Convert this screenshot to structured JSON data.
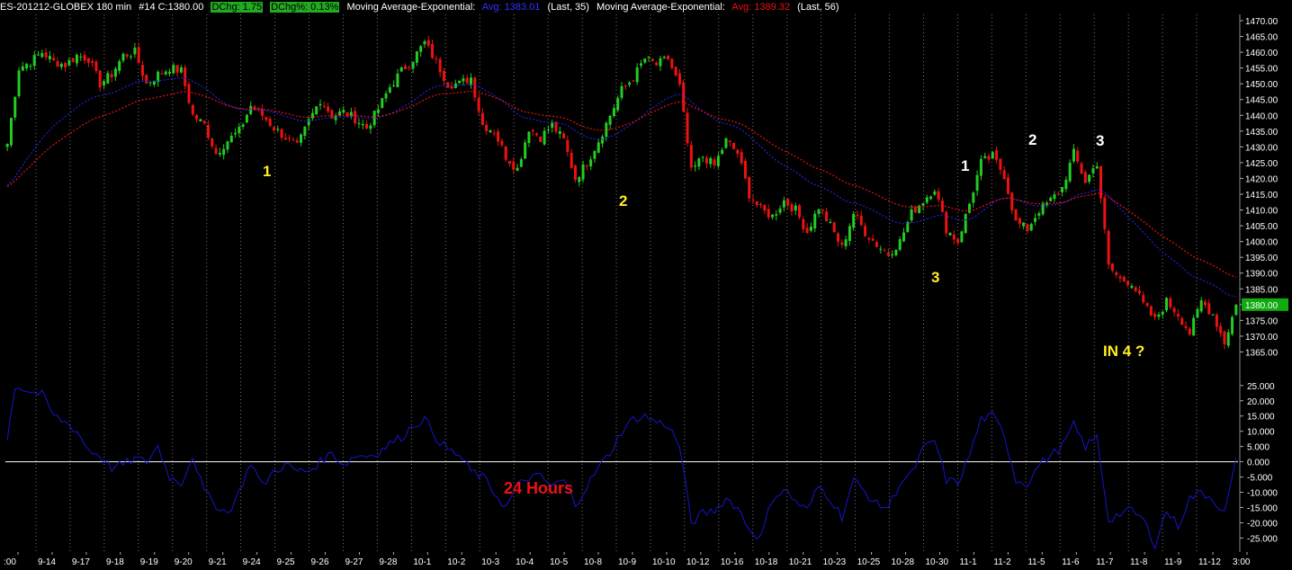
{
  "header": {
    "symbol": "ES-201212-GLOBEX 180 min",
    "bar_info": "#14 C:1380.00",
    "dchg": "DChg: 1.75",
    "dchg_pct": "DChg%: 0.13%",
    "ma1_label": "Moving Average-Exponential:",
    "ma1_avg": "Avg: 1383.01",
    "ma1_params": "(Last, 35)",
    "ma2_label": "Moving Average-Exponential:",
    "ma2_avg": "Avg: 1389.32",
    "ma2_params": "(Last, 56)"
  },
  "colors": {
    "bull": "#22cc22",
    "bear": "#ee1111",
    "ma_fast": "#2222dd",
    "ma_slow": "#ee1111",
    "oscillator": "#1515cc",
    "yellow_annotation": "#ffee22"
  },
  "chart_data": [
    {
      "type": "candlestick",
      "ylim": [
        1362,
        1472
      ],
      "y_ticks": [
        "1470.00",
        "1465.00",
        "1460.00",
        "1455.00",
        "1450.00",
        "1445.00",
        "1440.00",
        "1435.00",
        "1430.00",
        "1425.00",
        "1420.00",
        "1415.00",
        "1410.00",
        "1405.00",
        "1400.00",
        "1395.00",
        "1390.00",
        "1385.00",
        "1380.00",
        "1375.00",
        "1370.00",
        "1365.00"
      ],
      "current_price": "1380.00",
      "x_labels": [
        ":00",
        "9-14",
        "9-17",
        "9-18",
        "9-19",
        "9-20",
        "9-21",
        "9-24",
        "9-25",
        "9-26",
        "9-27",
        "9-28",
        "10-1",
        "10-2",
        "10-3",
        "10-4",
        "10-5",
        "10-8",
        "10-9",
        "10-10",
        "10-12",
        "10-16",
        "10-18",
        "10-21",
        "10-23",
        "10-25",
        "10-28",
        "10-30",
        "11-1",
        "11-2",
        "11-5",
        "11-6",
        "11-7",
        "11-8",
        "11-9",
        "11-12",
        "3:00"
      ],
      "close_path": [
        [
          0,
          1431
        ],
        [
          3,
          1455
        ],
        [
          6,
          1457
        ],
        [
          9,
          1460
        ],
        [
          12,
          1457
        ],
        [
          15,
          1456
        ],
        [
          18,
          1459
        ],
        [
          21,
          1458
        ],
        [
          24,
          1450
        ],
        [
          27,
          1453
        ],
        [
          30,
          1459
        ],
        [
          33,
          1460
        ],
        [
          36,
          1450
        ],
        [
          39,
          1453
        ],
        [
          42,
          1455
        ],
        [
          45,
          1454
        ],
        [
          48,
          1440
        ],
        [
          51,
          1437
        ],
        [
          54,
          1428
        ],
        [
          57,
          1432
        ],
        [
          60,
          1435
        ],
        [
          63,
          1443
        ],
        [
          66,
          1440
        ],
        [
          69,
          1436
        ],
        [
          72,
          1433
        ],
        [
          75,
          1430
        ],
        [
          78,
          1438
        ],
        [
          81,
          1445
        ],
        [
          84,
          1440
        ],
        [
          87,
          1441
        ],
        [
          90,
          1439
        ],
        [
          93,
          1436
        ],
        [
          96,
          1442
        ],
        [
          99,
          1449
        ],
        [
          102,
          1454
        ],
        [
          105,
          1458
        ],
        [
          108,
          1463
        ],
        [
          111,
          1457
        ],
        [
          114,
          1450
        ],
        [
          117,
          1450
        ],
        [
          120,
          1452
        ],
        [
          123,
          1437
        ],
        [
          126,
          1435
        ],
        [
          129,
          1427
        ],
        [
          132,
          1423
        ],
        [
          135,
          1436
        ],
        [
          138,
          1433
        ],
        [
          141,
          1437
        ],
        [
          144,
          1432
        ],
        [
          147,
          1420
        ],
        [
          150,
          1425
        ],
        [
          153,
          1432
        ],
        [
          156,
          1440
        ],
        [
          159,
          1448
        ],
        [
          162,
          1452
        ],
        [
          165,
          1458
        ],
        [
          168,
          1456
        ],
        [
          171,
          1458
        ],
        [
          174,
          1449
        ],
        [
          177,
          1422
        ],
        [
          180,
          1427
        ],
        [
          183,
          1424
        ],
        [
          186,
          1432
        ],
        [
          189,
          1428
        ],
        [
          192,
          1415
        ],
        [
          195,
          1410
        ],
        [
          198,
          1408
        ],
        [
          201,
          1413
        ],
        [
          204,
          1410
        ],
        [
          207,
          1403
        ],
        [
          210,
          1411
        ],
        [
          213,
          1405
        ],
        [
          216,
          1398
        ],
        [
          219,
          1409
        ],
        [
          222,
          1403
        ],
        [
          225,
          1399
        ],
        [
          228,
          1396
        ],
        [
          231,
          1400
        ],
        [
          234,
          1409
        ],
        [
          237,
          1413
        ],
        [
          240,
          1417
        ],
        [
          243,
          1404
        ],
        [
          246,
          1400
        ],
        [
          249,
          1412
        ],
        [
          252,
          1425
        ],
        [
          255,
          1427
        ],
        [
          258,
          1421
        ],
        [
          261,
          1406
        ],
        [
          264,
          1404
        ],
        [
          267,
          1410
        ],
        [
          270,
          1413
        ],
        [
          273,
          1417
        ],
        [
          276,
          1428
        ],
        [
          279,
          1419
        ],
        [
          282,
          1425
        ],
        [
          285,
          1392
        ],
        [
          288,
          1388
        ],
        [
          291,
          1387
        ],
        [
          294,
          1380
        ],
        [
          297,
          1375
        ],
        [
          300,
          1381
        ],
        [
          303,
          1377
        ],
        [
          306,
          1371
        ],
        [
          309,
          1381
        ],
        [
          312,
          1377
        ],
        [
          315,
          1368
        ],
        [
          318,
          1380
        ]
      ]
    },
    {
      "type": "line",
      "name": "24 Hours",
      "ylim": [
        -29,
        27
      ],
      "y_ticks": [
        "25.000",
        "20.000",
        "15.000",
        "10.000",
        "5.000",
        "0.000",
        "-5.000",
        "-10.000",
        "-15.000",
        "-20.000",
        "-25.000"
      ],
      "values_path": [
        [
          0,
          7
        ],
        [
          2,
          25
        ],
        [
          6,
          23
        ],
        [
          9,
          22
        ],
        [
          12,
          15
        ],
        [
          15,
          13
        ],
        [
          18,
          10
        ],
        [
          21,
          4
        ],
        [
          24,
          2
        ],
        [
          27,
          -2
        ],
        [
          30,
          -1
        ],
        [
          33,
          1
        ],
        [
          36,
          0
        ],
        [
          39,
          5
        ],
        [
          42,
          -5
        ],
        [
          45,
          -7
        ],
        [
          48,
          2
        ],
        [
          51,
          -10
        ],
        [
          54,
          -14
        ],
        [
          57,
          -17
        ],
        [
          60,
          -10
        ],
        [
          63,
          0
        ],
        [
          66,
          -8
        ],
        [
          69,
          -3
        ],
        [
          72,
          -1
        ],
        [
          75,
          -3
        ],
        [
          78,
          -3
        ],
        [
          81,
          0
        ],
        [
          84,
          3
        ],
        [
          87,
          -1
        ],
        [
          90,
          2
        ],
        [
          93,
          2
        ],
        [
          96,
          3
        ],
        [
          99,
          6
        ],
        [
          102,
          8
        ],
        [
          105,
          12
        ],
        [
          108,
          14
        ],
        [
          111,
          8
        ],
        [
          114,
          4
        ],
        [
          117,
          2
        ],
        [
          120,
          -3
        ],
        [
          123,
          -5
        ],
        [
          126,
          -10
        ],
        [
          129,
          -15
        ],
        [
          132,
          -8
        ],
        [
          135,
          -5
        ],
        [
          138,
          -5
        ],
        [
          141,
          -8
        ],
        [
          144,
          -6
        ],
        [
          147,
          -14
        ],
        [
          150,
          -8
        ],
        [
          153,
          -2
        ],
        [
          156,
          3
        ],
        [
          159,
          10
        ],
        [
          162,
          14
        ],
        [
          165,
          15
        ],
        [
          168,
          13
        ],
        [
          171,
          12
        ],
        [
          174,
          5
        ],
        [
          177,
          -20
        ],
        [
          180,
          -17
        ],
        [
          183,
          -16
        ],
        [
          186,
          -12
        ],
        [
          189,
          -15
        ],
        [
          192,
          -22
        ],
        [
          195,
          -25
        ],
        [
          198,
          -12
        ],
        [
          201,
          -9
        ],
        [
          204,
          -13
        ],
        [
          207,
          -16
        ],
        [
          210,
          -8
        ],
        [
          213,
          -12
        ],
        [
          216,
          -18
        ],
        [
          219,
          -6
        ],
        [
          222,
          -10
        ],
        [
          225,
          -14
        ],
        [
          228,
          -15
        ],
        [
          231,
          -7
        ],
        [
          234,
          -4
        ],
        [
          237,
          4
        ],
        [
          240,
          7
        ],
        [
          243,
          -6
        ],
        [
          246,
          -7
        ],
        [
          249,
          2
        ],
        [
          252,
          14
        ],
        [
          255,
          15
        ],
        [
          258,
          9
        ],
        [
          261,
          -6
        ],
        [
          264,
          -7
        ],
        [
          267,
          -1
        ],
        [
          270,
          2
        ],
        [
          273,
          5
        ],
        [
          276,
          12
        ],
        [
          279,
          5
        ],
        [
          282,
          8
        ],
        [
          285,
          -19
        ],
        [
          288,
          -17
        ],
        [
          291,
          -16
        ],
        [
          294,
          -19
        ],
        [
          297,
          -27
        ],
        [
          300,
          -16
        ],
        [
          303,
          -21
        ],
        [
          306,
          -12
        ],
        [
          309,
          -10
        ],
        [
          312,
          -12
        ],
        [
          315,
          -17
        ],
        [
          318,
          0
        ]
      ]
    }
  ],
  "annotations": {
    "y1": "1",
    "y2": "2",
    "y3": "3",
    "w1": "1",
    "w2": "2",
    "w3": "3",
    "in4": "IN 4 ?",
    "hours": "24 Hours"
  }
}
